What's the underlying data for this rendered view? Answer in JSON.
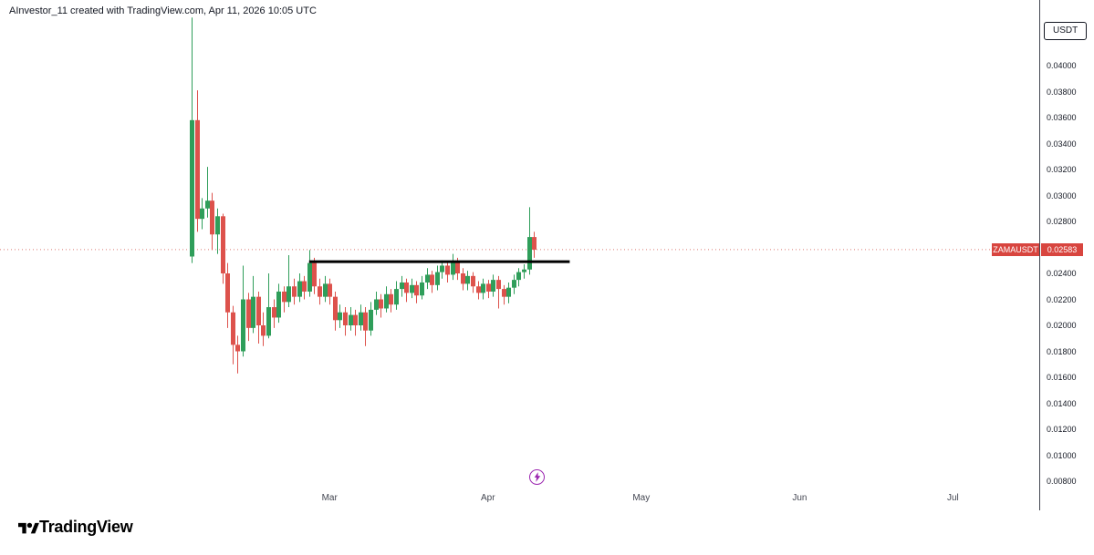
{
  "attribution": "AInvestor_11 created with TradingView.com, Apr 11, 2026 10:05 UTC",
  "symbol_label": "ZAMAUSDT",
  "current_price": "0.02583",
  "currency_button": "USDT",
  "footer": {
    "brand": "TradingView"
  },
  "time_axis": {
    "months": [
      "Mar",
      "Apr",
      "May",
      "Jun",
      "Jul"
    ]
  },
  "price_axis": {
    "ticks": [
      "0.04000",
      "0.03800",
      "0.03600",
      "0.03400",
      "0.03200",
      "0.03000",
      "0.02800",
      "0.02400",
      "0.02200",
      "0.02000",
      "0.01800",
      "0.01600",
      "0.01400",
      "0.01200",
      "0.01000",
      "0.00800"
    ]
  },
  "colors": {
    "up": "#2f9e5a",
    "down": "#dd524c",
    "price_label_bg": "#d8453f",
    "price_line": "#db7a74",
    "trendline": "#000000",
    "event": "#9c27b0",
    "axis_border": "#434651"
  },
  "icons": {
    "event_marker": "lightning-icon",
    "footer_logo": "tradingview-logo-icon"
  },
  "chart_data": {
    "type": "candlestick",
    "symbol": "ZAMAUSDT",
    "quote_currency": "USDT",
    "interval": "1D",
    "y_axis": {
      "min": 0.008,
      "max": 0.04,
      "step": 0.002,
      "grid": false
    },
    "x_axis_months": [
      "Mar",
      "Apr",
      "May",
      "Jun",
      "Jul"
    ],
    "ohlc_columns": [
      "date",
      "open",
      "high",
      "low",
      "close"
    ],
    "ohlc": [
      [
        "2026-02-02",
        0.0253,
        0.0437,
        0.0248,
        0.0358
      ],
      [
        "2026-02-03",
        0.0358,
        0.0381,
        0.0272,
        0.0282
      ],
      [
        "2026-02-04",
        0.0282,
        0.0298,
        0.0274,
        0.029
      ],
      [
        "2026-02-05",
        0.029,
        0.0322,
        0.0283,
        0.0296
      ],
      [
        "2026-02-06",
        0.0296,
        0.0302,
        0.0258,
        0.027
      ],
      [
        "2026-02-07",
        0.027,
        0.029,
        0.0255,
        0.0284
      ],
      [
        "2026-02-08",
        0.0284,
        0.0286,
        0.0232,
        0.024
      ],
      [
        "2026-02-09",
        0.024,
        0.0248,
        0.0198,
        0.021
      ],
      [
        "2026-02-10",
        0.021,
        0.0215,
        0.017,
        0.0185
      ],
      [
        "2026-02-11",
        0.0185,
        0.0192,
        0.0163,
        0.018
      ],
      [
        "2026-02-12",
        0.018,
        0.0246,
        0.0176,
        0.022
      ],
      [
        "2026-02-13",
        0.022,
        0.0225,
        0.0188,
        0.0198
      ],
      [
        "2026-02-14",
        0.0198,
        0.0238,
        0.0194,
        0.0222
      ],
      [
        "2026-02-15",
        0.0222,
        0.0226,
        0.0186,
        0.02
      ],
      [
        "2026-02-16",
        0.02,
        0.021,
        0.0184,
        0.0192
      ],
      [
        "2026-02-17",
        0.0192,
        0.024,
        0.019,
        0.0214
      ],
      [
        "2026-02-18",
        0.0214,
        0.022,
        0.0198,
        0.0206
      ],
      [
        "2026-02-19",
        0.0206,
        0.0232,
        0.0202,
        0.0226
      ],
      [
        "2026-02-20",
        0.0226,
        0.023,
        0.021,
        0.0218
      ],
      [
        "2026-02-21",
        0.0218,
        0.0254,
        0.0214,
        0.023
      ],
      [
        "2026-02-22",
        0.023,
        0.0236,
        0.0216,
        0.0222
      ],
      [
        "2026-02-23",
        0.0222,
        0.024,
        0.0218,
        0.0234
      ],
      [
        "2026-02-24",
        0.0234,
        0.0238,
        0.022,
        0.0226
      ],
      [
        "2026-02-25",
        0.0226,
        0.0258,
        0.0222,
        0.0248
      ],
      [
        "2026-02-26",
        0.0248,
        0.0252,
        0.0224,
        0.023
      ],
      [
        "2026-02-27",
        0.023,
        0.0236,
        0.0216,
        0.0222
      ],
      [
        "2026-02-28",
        0.0222,
        0.0238,
        0.0218,
        0.0232
      ],
      [
        "2026-03-01",
        0.0232,
        0.0236,
        0.0216,
        0.0222
      ],
      [
        "2026-03-02",
        0.0222,
        0.0226,
        0.0196,
        0.0204
      ],
      [
        "2026-03-03",
        0.0204,
        0.0216,
        0.0198,
        0.021
      ],
      [
        "2026-03-04",
        0.021,
        0.0214,
        0.0192,
        0.02
      ],
      [
        "2026-03-05",
        0.02,
        0.0214,
        0.0196,
        0.0208
      ],
      [
        "2026-03-06",
        0.0208,
        0.0212,
        0.0192,
        0.02
      ],
      [
        "2026-03-07",
        0.02,
        0.0216,
        0.0196,
        0.021
      ],
      [
        "2026-03-08",
        0.021,
        0.0214,
        0.0184,
        0.0196
      ],
      [
        "2026-03-09",
        0.0196,
        0.0218,
        0.0192,
        0.0212
      ],
      [
        "2026-03-10",
        0.0212,
        0.0226,
        0.0208,
        0.022
      ],
      [
        "2026-03-11",
        0.022,
        0.0224,
        0.0206,
        0.0213
      ],
      [
        "2026-03-12",
        0.0213,
        0.023,
        0.021,
        0.0224
      ],
      [
        "2026-03-13",
        0.0224,
        0.0228,
        0.021,
        0.0216
      ],
      [
        "2026-03-14",
        0.0216,
        0.0234,
        0.0212,
        0.0228
      ],
      [
        "2026-03-15",
        0.0228,
        0.0238,
        0.0222,
        0.0233
      ],
      [
        "2026-03-16",
        0.0233,
        0.0236,
        0.0218,
        0.0225
      ],
      [
        "2026-03-17",
        0.0225,
        0.0236,
        0.0221,
        0.0231
      ],
      [
        "2026-03-18",
        0.0231,
        0.0234,
        0.0217,
        0.0223
      ],
      [
        "2026-03-19",
        0.0223,
        0.0238,
        0.022,
        0.0233
      ],
      [
        "2026-03-20",
        0.0233,
        0.0244,
        0.0228,
        0.0239
      ],
      [
        "2026-03-21",
        0.0239,
        0.0242,
        0.0225,
        0.0231
      ],
      [
        "2026-03-22",
        0.0231,
        0.0246,
        0.0227,
        0.0241
      ],
      [
        "2026-03-23",
        0.0241,
        0.025,
        0.0236,
        0.0246
      ],
      [
        "2026-03-24",
        0.0246,
        0.0249,
        0.0233,
        0.0239
      ],
      [
        "2026-03-25",
        0.0239,
        0.0255,
        0.0235,
        0.0249
      ],
      [
        "2026-03-26",
        0.0249,
        0.0252,
        0.0235,
        0.024
      ],
      [
        "2026-03-27",
        0.024,
        0.0244,
        0.0227,
        0.0232
      ],
      [
        "2026-03-28",
        0.0232,
        0.0242,
        0.0227,
        0.0238
      ],
      [
        "2026-03-29",
        0.0238,
        0.0241,
        0.0225,
        0.023
      ],
      [
        "2026-03-30",
        0.023,
        0.0234,
        0.022,
        0.0225
      ],
      [
        "2026-03-31",
        0.0225,
        0.0236,
        0.022,
        0.0232
      ],
      [
        "2026-04-01",
        0.0232,
        0.0235,
        0.0221,
        0.0226
      ],
      [
        "2026-04-02",
        0.0226,
        0.0239,
        0.0222,
        0.0235
      ],
      [
        "2026-04-03",
        0.0235,
        0.0238,
        0.0213,
        0.0228
      ],
      [
        "2026-04-04",
        0.0228,
        0.0231,
        0.0216,
        0.0222
      ],
      [
        "2026-04-05",
        0.0222,
        0.0233,
        0.0217,
        0.0229
      ],
      [
        "2026-04-06",
        0.0229,
        0.0239,
        0.0224,
        0.0235
      ],
      [
        "2026-04-07",
        0.0235,
        0.0244,
        0.023,
        0.0241
      ],
      [
        "2026-04-08",
        0.0241,
        0.0247,
        0.0236,
        0.0243
      ],
      [
        "2026-04-09",
        0.0243,
        0.0291,
        0.0239,
        0.0268
      ],
      [
        "2026-04-10",
        0.0268,
        0.0272,
        0.0252,
        0.02583
      ]
    ],
    "annotations": {
      "horizontal_trendline": {
        "price": 0.0249,
        "from": "2026-02-25",
        "to": "2026-04-17"
      },
      "current_price_line": 0.02583,
      "event_marker": {
        "type": "lightning",
        "date": "2026-04-10"
      }
    }
  }
}
